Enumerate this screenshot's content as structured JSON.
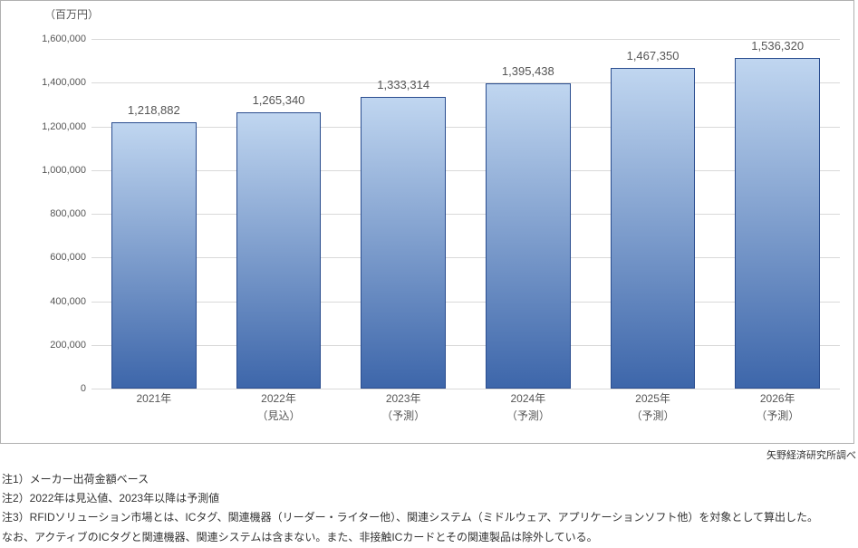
{
  "chart": {
    "type": "bar",
    "y_unit_label": "（百万円）",
    "ylim": [
      0,
      1600000
    ],
    "ytick_step": 200000,
    "yticks": [
      0,
      200000,
      400000,
      600000,
      800000,
      1000000,
      1200000,
      1400000,
      1600000
    ],
    "ytick_labels": [
      "0",
      "200,000",
      "400,000",
      "600,000",
      "800,000",
      "1,000,000",
      "1,200,000",
      "1,400,000",
      "1,600,000"
    ],
    "categories": [
      {
        "line1": "2021年",
        "line2": ""
      },
      {
        "line1": "2022年",
        "line2": "（見込）"
      },
      {
        "line1": "2023年",
        "line2": "（予測）"
      },
      {
        "line1": "2024年",
        "line2": "（予測）"
      },
      {
        "line1": "2025年",
        "line2": "（予測）"
      },
      {
        "line1": "2026年",
        "line2": "（予測）"
      }
    ],
    "values": [
      1218882,
      1265340,
      1333314,
      1395438,
      1467350,
      1536320
    ],
    "value_labels": [
      "1,218,882",
      "1,265,340",
      "1,333,314",
      "1,395,438",
      "1,467,350",
      "1,536,320"
    ],
    "bar_gradient_top": "#c0d6f0",
    "bar_gradient_bottom": "#3d66aa",
    "bar_border": "#2a4d8f",
    "grid_color": "#d9d9d9",
    "background_color": "#ffffff",
    "label_fontsize": 12,
    "value_fontsize": 13
  },
  "source": "矢野経済研究所調べ",
  "notes": [
    "注1）メーカー出荷金額ベース",
    "注2）2022年は見込値、2023年以降は予測値",
    "注3）RFIDソリューション市場とは、ICタグ、関連機器（リーダー・ライター他）、関連システム（ミドルウェア、アプリケーションソフト他）を対象として算出した。",
    "なお、アクティブのICタグと関連機器、関連システムは含まない。また、非接触ICカードとその関連製品は除外している。"
  ]
}
